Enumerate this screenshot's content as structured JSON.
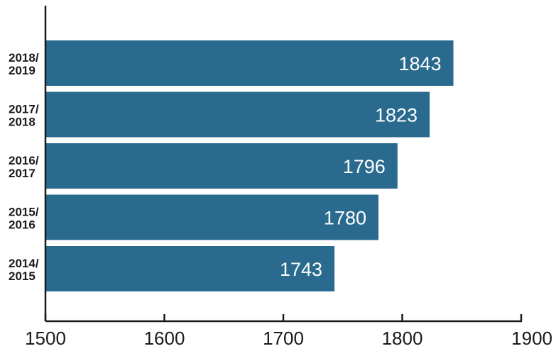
{
  "chart_data": {
    "type": "bar",
    "orientation": "horizontal",
    "categories": [
      [
        "2018/",
        "2019"
      ],
      [
        "2017/",
        "2018"
      ],
      [
        "2016/",
        "2017"
      ],
      [
        "2015/",
        "2016"
      ],
      [
        "2014/",
        "2015"
      ]
    ],
    "values": [
      1843,
      1823,
      1796,
      1780,
      1743
    ],
    "data_labels": [
      "1843",
      "1823",
      "1796",
      "1780",
      "1743"
    ],
    "xlim": [
      1500,
      1900
    ],
    "xticks": [
      1500,
      1600,
      1700,
      1800,
      1900
    ],
    "xtick_labels": [
      "1500",
      "1600",
      "1700",
      "1800",
      "1900"
    ],
    "title": "",
    "xlabel": "",
    "ylabel": "",
    "grid": false,
    "legend": "none",
    "bar_color": "#2a6a8e"
  }
}
